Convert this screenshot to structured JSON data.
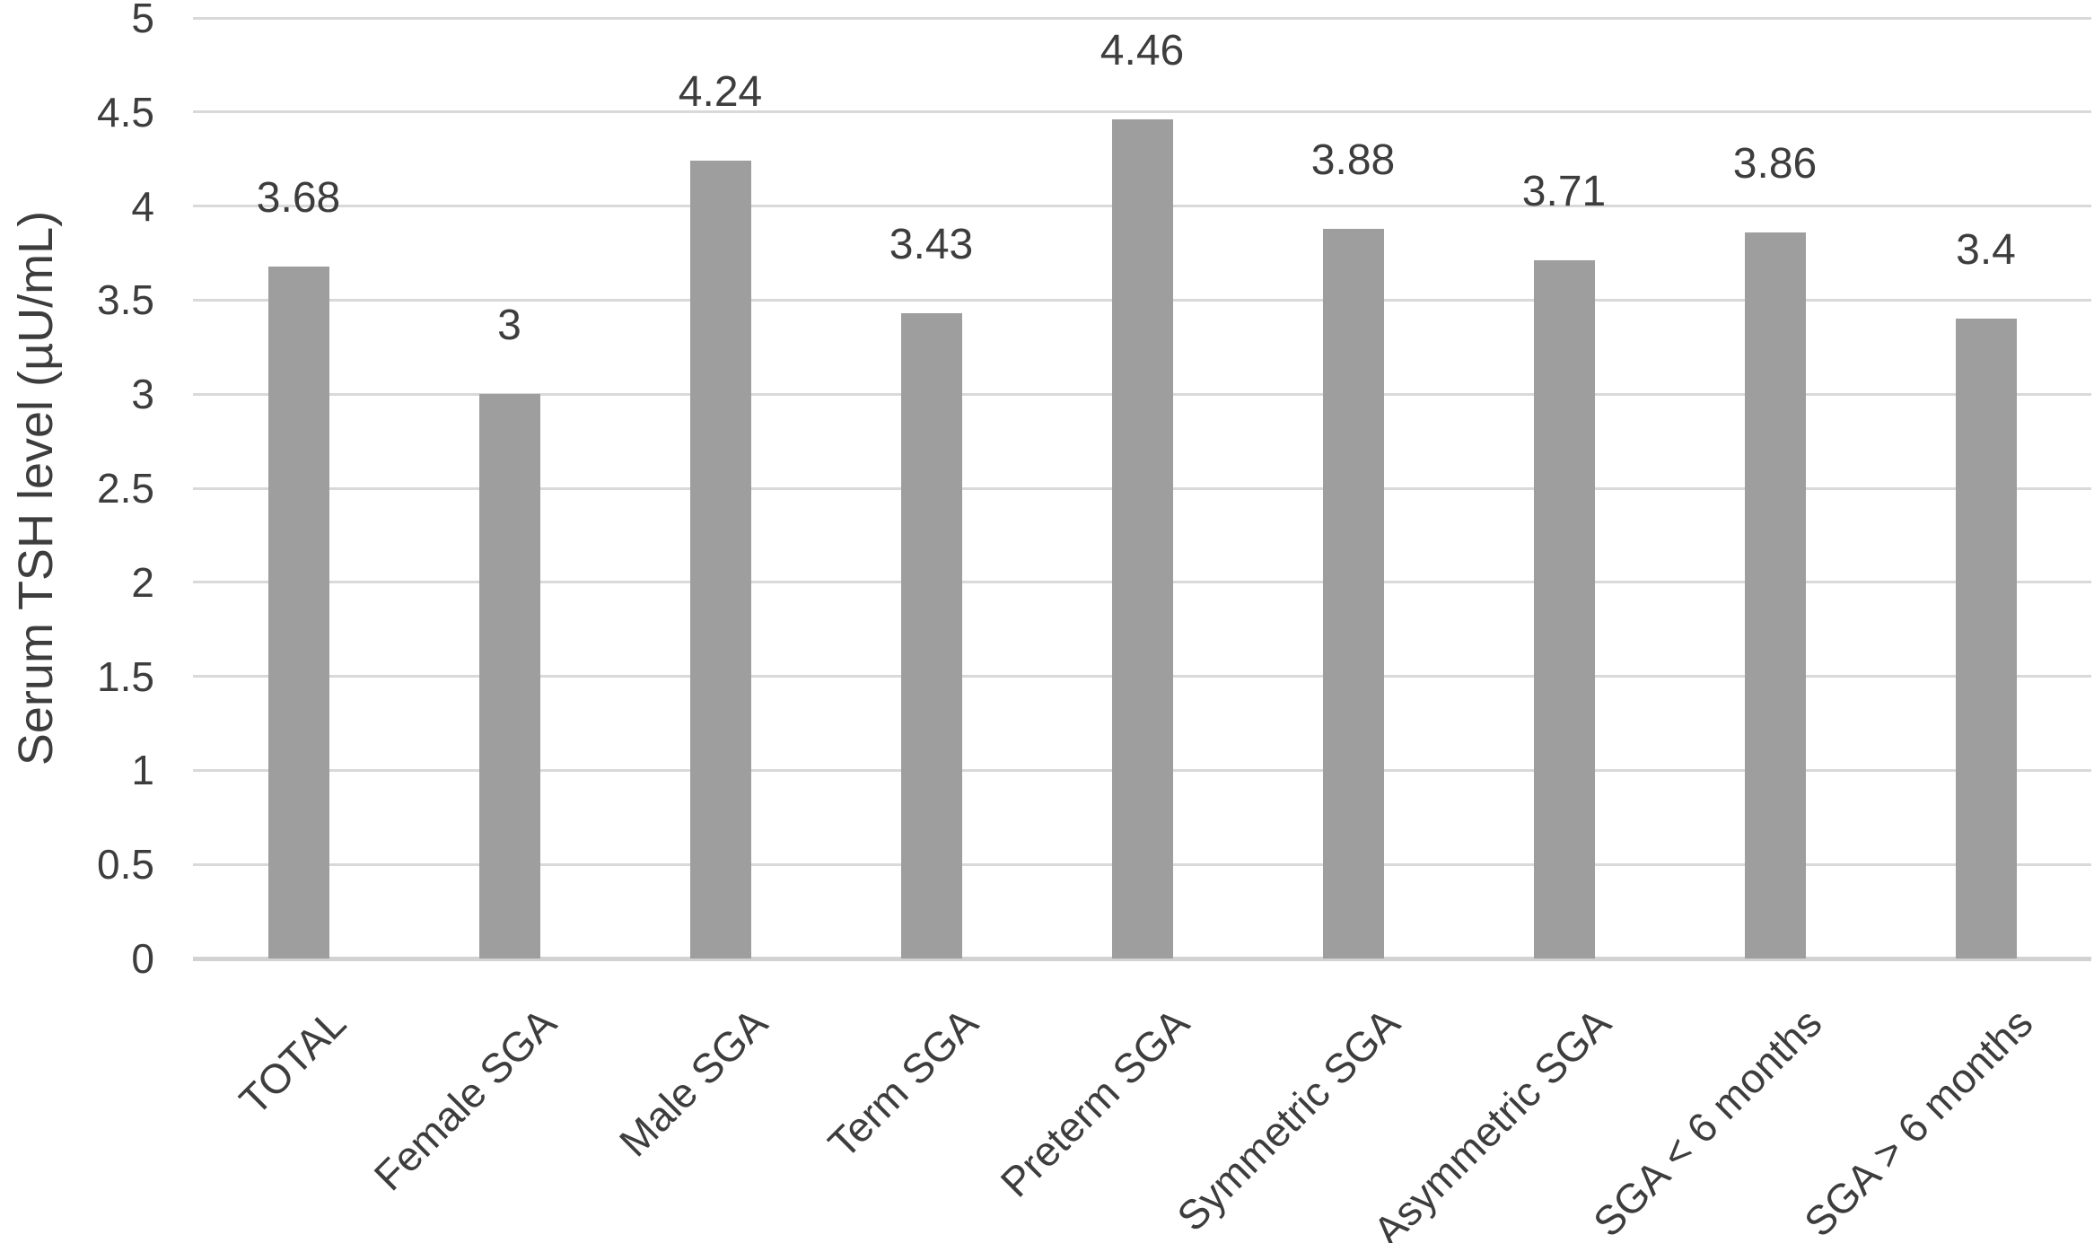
{
  "chart_data": {
    "type": "bar",
    "title": "",
    "xlabel": "",
    "ylabel": "Serum TSH level (µU/mL)",
    "categories": [
      "TOTAL",
      "Female SGA",
      "Male SGA",
      "Term SGA",
      "Preterm SGA",
      "Symmetric SGA",
      "Asymmetric SGA",
      "SGA < 6 months",
      "SGA > 6 months"
    ],
    "values": [
      3.68,
      3,
      4.24,
      3.43,
      4.46,
      3.88,
      3.71,
      3.86,
      3.4
    ],
    "value_labels": [
      "3.68",
      "3",
      "4.24",
      "3.43",
      "4.46",
      "3.88",
      "3.71",
      "3.86",
      "3.4"
    ],
    "ylim": [
      0,
      5
    ],
    "ytick_step": 0.5,
    "ytick_labels": [
      "5",
      "4.5",
      "4",
      "3.5",
      "3",
      "2.5",
      "2",
      "1.5",
      "1",
      "0.5",
      "0"
    ],
    "grid": true,
    "legend_position": "none",
    "bar_color": "#9e9e9e",
    "grid_color": "#d9d9d9",
    "baseline_color": "#d2d2d2",
    "text_color": "#3d3d3d",
    "background_color": "#ffffff"
  }
}
